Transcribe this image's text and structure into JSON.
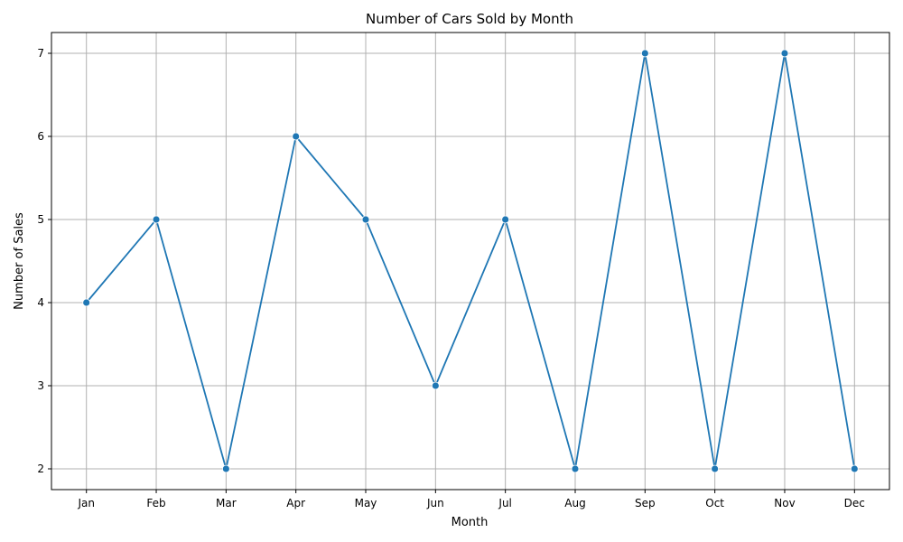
{
  "chart_data": {
    "type": "line",
    "title": "Number of Cars Sold by Month",
    "xlabel": "Month",
    "ylabel": "Number of Sales",
    "categories": [
      "Jan",
      "Feb",
      "Mar",
      "Apr",
      "May",
      "Jun",
      "Jul",
      "Aug",
      "Sep",
      "Oct",
      "Nov",
      "Dec"
    ],
    "series": [
      {
        "values": [
          4,
          5,
          2,
          6,
          5,
          3,
          5,
          2,
          7,
          2,
          7,
          2
        ]
      }
    ],
    "yticks": [
      2,
      3,
      4,
      5,
      6,
      7
    ],
    "ylim": [
      1.75,
      7.25
    ],
    "grid": true,
    "markers": true,
    "line_color": "#1f77b4"
  }
}
